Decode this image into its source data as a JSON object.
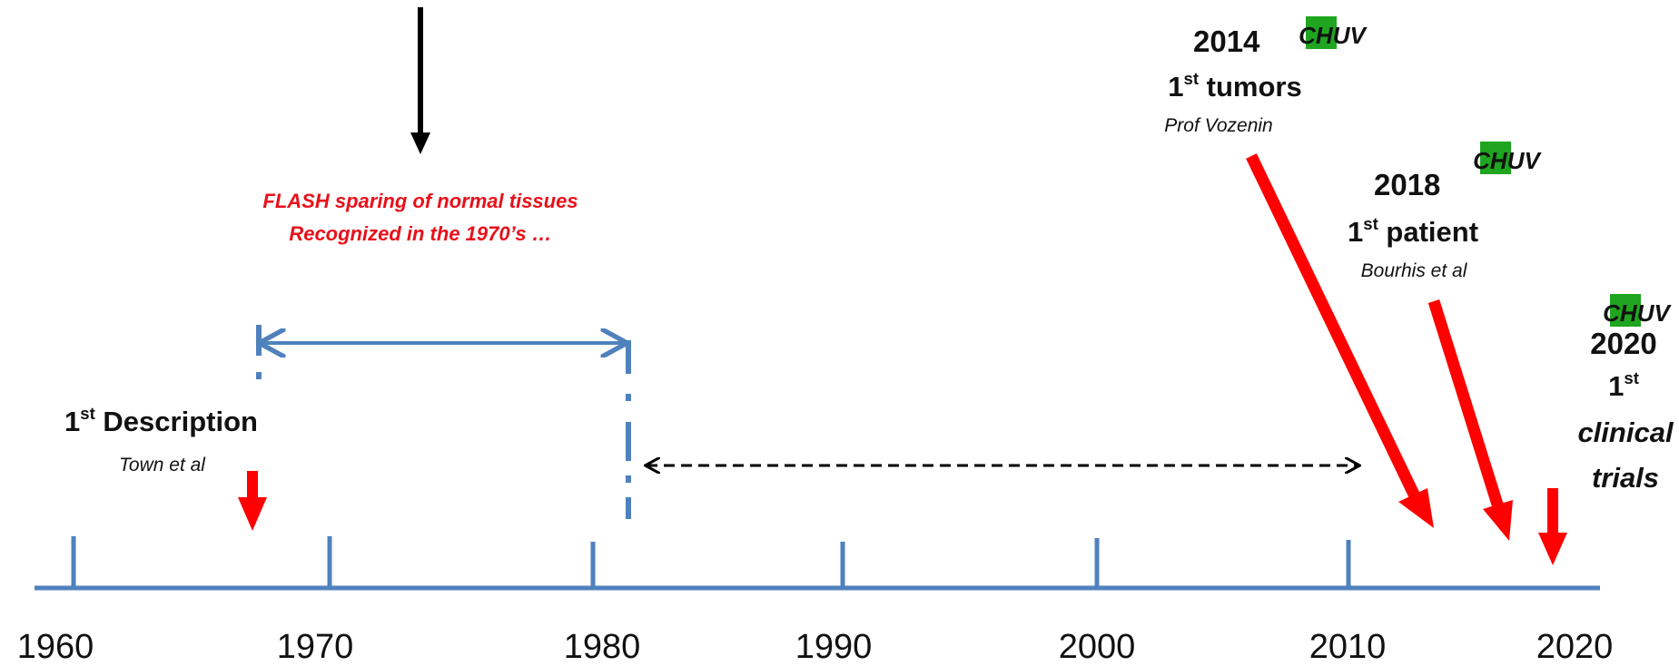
{
  "timeline": {
    "years": [
      "1960",
      "1970",
      "1980",
      "1990",
      "2000",
      "2010",
      "2020"
    ]
  },
  "flash_note": {
    "line1": "FLASH sparing of normal tissues",
    "line2": "Recognized in the 1970’s …"
  },
  "first_description": {
    "ordinal": "1",
    "sup": "st",
    "label": "Description",
    "author": "Town et al"
  },
  "milestone_2014": {
    "year": "2014",
    "ordinal": "1",
    "sup": "st",
    "label": "tumors",
    "author": "Prof Vozenin"
  },
  "milestone_2018": {
    "year": "2018",
    "ordinal": "1",
    "sup": "st",
    "label": "patient",
    "author": "Bourhis et al"
  },
  "milestone_2020": {
    "year": "2020",
    "ordinal": "1",
    "sup": "st",
    "label_line1": "clinical",
    "label_line2": "trials"
  },
  "logo": {
    "text": "CHUV",
    "green": "#1fa51f",
    "ink": "#111111"
  },
  "colors": {
    "axis": "#4f81bd",
    "red": "#ff0000",
    "black": "#000000"
  }
}
